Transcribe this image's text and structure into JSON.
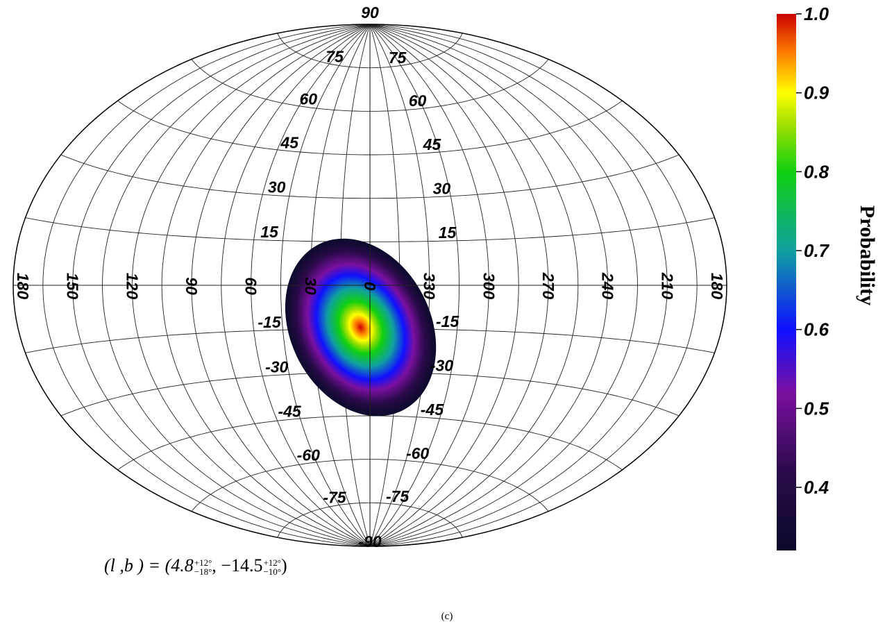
{
  "map": {
    "projection": "aitoff",
    "meridian_labels": [
      "180",
      "150",
      "120",
      "90",
      "60",
      "30",
      "0",
      "330",
      "300",
      "270",
      "240",
      "210",
      "180"
    ],
    "parallel_labels": [
      "75",
      "60",
      "45",
      "30",
      "15",
      "-15",
      "-30",
      "-45",
      "-60",
      "-75"
    ],
    "pole_labels": {
      "north": "90",
      "south": "-90"
    },
    "probability_region": {
      "l_center_deg": 4.8,
      "b_center_deg": -14.5
    }
  },
  "colorbar": {
    "title": "Probability",
    "ticks": [
      "1.0",
      "0.9",
      "0.8",
      "0.7",
      "0.6",
      "0.5",
      "0.4"
    ],
    "stops": [
      {
        "value": 0.32,
        "color": "#0a0a2a"
      },
      {
        "value": 0.42,
        "color": "#2a0a4a"
      },
      {
        "value": 0.52,
        "color": "#7a10a0"
      },
      {
        "value": 0.6,
        "color": "#1010ff"
      },
      {
        "value": 0.7,
        "color": "#10a0a0"
      },
      {
        "value": 0.8,
        "color": "#10d010"
      },
      {
        "value": 0.86,
        "color": "#a0e000"
      },
      {
        "value": 0.9,
        "color": "#ffff00"
      },
      {
        "value": 0.95,
        "color": "#ff8000"
      },
      {
        "value": 1.0,
        "color": "#cc0000"
      }
    ]
  },
  "formula": {
    "lhs": "(l ,b ) = (4.8",
    "l_sup": "+12°",
    "l_sub": "−18°",
    "mid": ", −14.5",
    "b_sup": "+12°",
    "b_sub": "−10°",
    "close": ")"
  },
  "caption": "(c)"
}
